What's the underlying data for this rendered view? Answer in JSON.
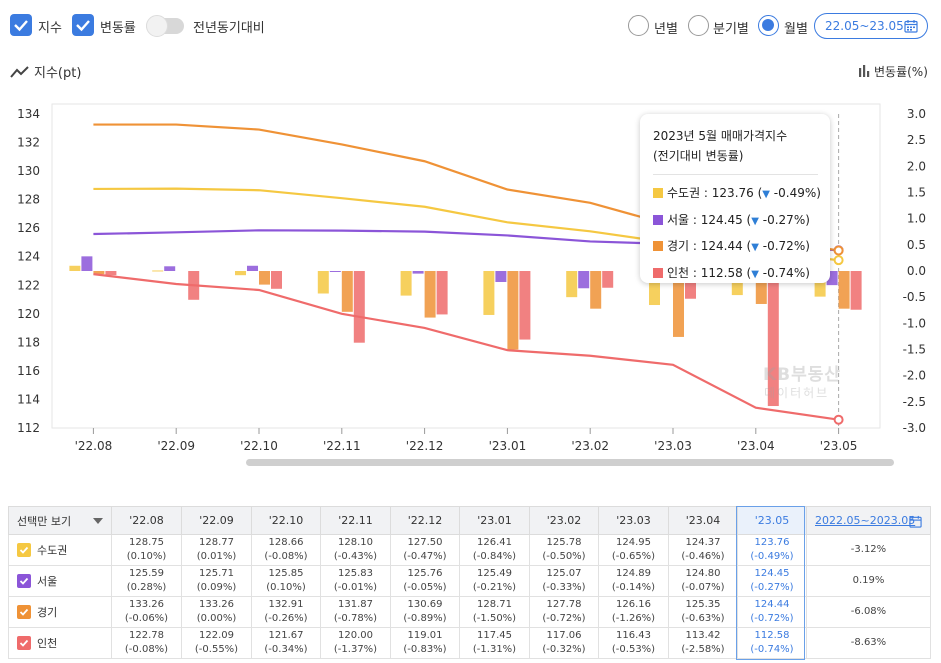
{
  "controls": {
    "index_label": "지수",
    "rate_label": "변동률",
    "yoy_label": "전년동기대비",
    "period_options": [
      "년별",
      "분기별",
      "월별"
    ],
    "period_selected": "월별",
    "range": "22.05~23.05"
  },
  "axis_titles": {
    "left": "지수(pt)",
    "right": "변동률(%)"
  },
  "tooltip": {
    "title_line1": "2023년 5월 매매가격지수",
    "title_line2": "(전기대비 변동률)",
    "rows": [
      {
        "label": "수도권",
        "value": "123.76",
        "rate": "-0.49%"
      },
      {
        "label": "서울",
        "value": "124.45",
        "rate": "-0.27%"
      },
      {
        "label": "경기",
        "value": "124.44",
        "rate": "-0.72%"
      },
      {
        "label": "인천",
        "value": "112.58",
        "rate": "-0.74%"
      }
    ]
  },
  "watermark": {
    "line1": "KB부동산",
    "line2": "데이터허브"
  },
  "chart_data": {
    "type": "line",
    "categories": [
      "'22.08",
      "'22.09",
      "'22.10",
      "'22.11",
      "'22.12",
      "'23.01",
      "'23.02",
      "'23.03",
      "'23.04",
      "'23.05"
    ],
    "y_left": {
      "ylim": [
        112,
        134
      ],
      "ticks": [
        112,
        114,
        116,
        118,
        120,
        122,
        124,
        126,
        128,
        130,
        132,
        134
      ]
    },
    "y_right": {
      "ylim": [
        -3.0,
        3.0
      ],
      "ticks": [
        "3.0",
        "2.5",
        "2.0",
        "1.5",
        "1.0",
        "0.5",
        "0.0",
        "-0.5",
        "-1.0",
        "-1.5",
        "-2.0",
        "-2.5",
        "-3.0"
      ]
    },
    "series": [
      {
        "name": "수도권",
        "color": "#f5c842",
        "index": [
          128.75,
          128.77,
          128.66,
          128.1,
          127.5,
          126.41,
          125.78,
          124.95,
          124.37,
          123.76
        ],
        "rate": [
          0.1,
          0.01,
          -0.08,
          -0.43,
          -0.47,
          -0.84,
          -0.5,
          -0.65,
          -0.46,
          -0.49
        ]
      },
      {
        "name": "서울",
        "color": "#8b55d8",
        "index": [
          125.59,
          125.71,
          125.85,
          125.83,
          125.76,
          125.49,
          125.07,
          124.89,
          124.8,
          124.45
        ],
        "rate": [
          0.28,
          0.09,
          0.1,
          -0.01,
          -0.05,
          -0.21,
          -0.33,
          -0.14,
          -0.07,
          -0.27
        ]
      },
      {
        "name": "경기",
        "color": "#ef9236",
        "index": [
          133.26,
          133.26,
          132.91,
          131.87,
          130.69,
          128.71,
          127.78,
          126.16,
          125.35,
          124.44
        ],
        "rate": [
          -0.06,
          0.0,
          -0.26,
          -0.78,
          -0.89,
          -1.5,
          -0.72,
          -1.26,
          -0.63,
          -0.72
        ]
      },
      {
        "name": "인천",
        "color": "#ef6b6b",
        "index": [
          122.78,
          122.09,
          121.67,
          120.0,
          119.01,
          117.45,
          117.06,
          116.43,
          113.42,
          112.58
        ],
        "rate": [
          -0.08,
          -0.55,
          -0.34,
          -1.37,
          -0.83,
          -1.31,
          -0.32,
          -0.53,
          -2.58,
          -0.74
        ]
      }
    ]
  },
  "table": {
    "corner": "선택만 보기",
    "months": [
      "'22.08",
      "'22.09",
      "'22.10",
      "'22.11",
      "'22.12",
      "'23.01",
      "'23.02",
      "'23.03",
      "'23.04",
      "'23.05"
    ],
    "range_header": "2022.05~2023.05",
    "rows": [
      {
        "name": "수도권",
        "color": "#f5c842",
        "cells": [
          [
            "128.75",
            "(0.10%)"
          ],
          [
            "128.77",
            "(0.01%)"
          ],
          [
            "128.66",
            "(-0.08%)"
          ],
          [
            "128.10",
            "(-0.43%)"
          ],
          [
            "127.50",
            "(-0.47%)"
          ],
          [
            "126.41",
            "(-0.84%)"
          ],
          [
            "125.78",
            "(-0.50%)"
          ],
          [
            "124.95",
            "(-0.65%)"
          ],
          [
            "124.37",
            "(-0.46%)"
          ],
          [
            "123.76",
            "(-0.49%)"
          ]
        ],
        "change": "-3.12%"
      },
      {
        "name": "서울",
        "color": "#8b55d8",
        "cells": [
          [
            "125.59",
            "(0.28%)"
          ],
          [
            "125.71",
            "(0.09%)"
          ],
          [
            "125.85",
            "(0.10%)"
          ],
          [
            "125.83",
            "(-0.01%)"
          ],
          [
            "125.76",
            "(-0.05%)"
          ],
          [
            "125.49",
            "(-0.21%)"
          ],
          [
            "125.07",
            "(-0.33%)"
          ],
          [
            "124.89",
            "(-0.14%)"
          ],
          [
            "124.80",
            "(-0.07%)"
          ],
          [
            "124.45",
            "(-0.27%)"
          ]
        ],
        "change": "0.19%"
      },
      {
        "name": "경기",
        "color": "#ef9236",
        "cells": [
          [
            "133.26",
            "(-0.06%)"
          ],
          [
            "133.26",
            "(0.00%)"
          ],
          [
            "132.91",
            "(-0.26%)"
          ],
          [
            "131.87",
            "(-0.78%)"
          ],
          [
            "130.69",
            "(-0.89%)"
          ],
          [
            "128.71",
            "(-1.50%)"
          ],
          [
            "127.78",
            "(-0.72%)"
          ],
          [
            "126.16",
            "(-1.26%)"
          ],
          [
            "125.35",
            "(-0.63%)"
          ],
          [
            "124.44",
            "(-0.72%)"
          ]
        ],
        "change": "-6.08%"
      },
      {
        "name": "인천",
        "color": "#ef6b6b",
        "cells": [
          [
            "122.78",
            "(-0.08%)"
          ],
          [
            "122.09",
            "(-0.55%)"
          ],
          [
            "121.67",
            "(-0.34%)"
          ],
          [
            "120.00",
            "(-1.37%)"
          ],
          [
            "119.01",
            "(-0.83%)"
          ],
          [
            "117.45",
            "(-1.31%)"
          ],
          [
            "117.06",
            "(-0.32%)"
          ],
          [
            "116.43",
            "(-0.53%)"
          ],
          [
            "113.42",
            "(-2.58%)"
          ],
          [
            "112.58",
            "(-0.74%)"
          ]
        ],
        "change": "-8.63%"
      }
    ]
  }
}
